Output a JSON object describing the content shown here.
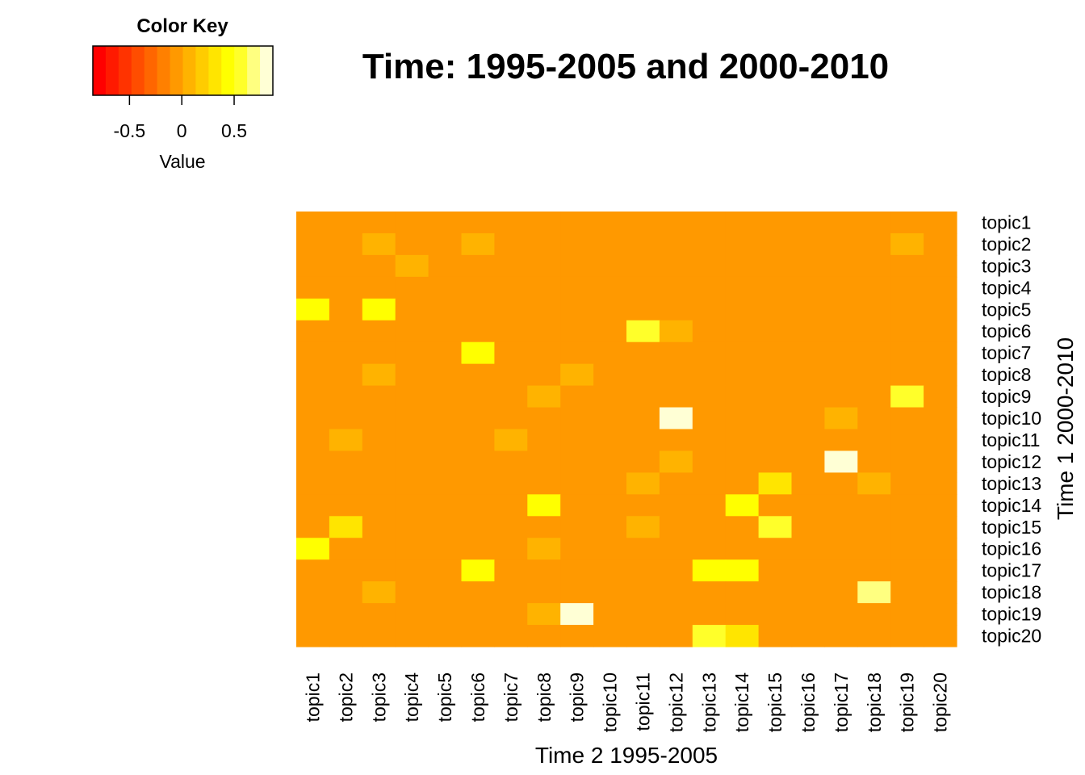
{
  "chart_data": {
    "type": "heatmap",
    "title": "Time: 1995-2005 and 2000-2010",
    "xlabel": "Time 2 1995-2005",
    "ylabel": "Time 1 2000-2010",
    "columns": [
      "topic1",
      "topic2",
      "topic3",
      "topic4",
      "topic5",
      "topic6",
      "topic7",
      "topic8",
      "topic9",
      "topic10",
      "topic11",
      "topic12",
      "topic13",
      "topic14",
      "topic15",
      "topic16",
      "topic17",
      "topic18",
      "topic19",
      "topic20"
    ],
    "rows": [
      "topic1",
      "topic2",
      "topic3",
      "topic4",
      "topic5",
      "topic6",
      "topic7",
      "topic8",
      "topic9",
      "topic10",
      "topic11",
      "topic12",
      "topic13",
      "topic14",
      "topic15",
      "topic16",
      "topic17",
      "topic18",
      "topic19",
      "topic20"
    ],
    "values": [
      [
        0,
        0,
        0,
        0,
        0,
        0,
        0,
        0,
        0,
        0,
        0,
        0,
        0,
        0,
        0,
        0,
        0,
        0,
        0,
        -0.1
      ],
      [
        0,
        0,
        0.1,
        0,
        0,
        0.1,
        0,
        0,
        0,
        0,
        0,
        0,
        0,
        0,
        0,
        0,
        0,
        0,
        0.1,
        -0.1
      ],
      [
        0,
        0,
        0,
        0.1,
        -0.1,
        0,
        0,
        0,
        0,
        0,
        0,
        -0.1,
        0,
        0,
        0,
        0,
        0,
        0,
        0,
        -0.1
      ],
      [
        -0.1,
        0,
        -0.1,
        -0.1,
        -0.1,
        -0.1,
        -0.1,
        -0.1,
        0,
        -0.1,
        0,
        -0.1,
        -0.1,
        -0.1,
        -0.1,
        0,
        0,
        -0.1,
        0,
        -0.1
      ],
      [
        0.5,
        0,
        0.5,
        0,
        0,
        0,
        0,
        -0.1,
        0,
        0,
        0,
        0,
        0,
        0,
        0,
        0,
        0,
        0,
        0,
        -0.1
      ],
      [
        0,
        0,
        0,
        0,
        0,
        0,
        0,
        0,
        0,
        0,
        0.6,
        0.1,
        0,
        0,
        0,
        -0.1,
        0,
        0,
        0,
        -0.1
      ],
      [
        0,
        0,
        0,
        0,
        0,
        0.5,
        0,
        0,
        0,
        0,
        0,
        0,
        0,
        0,
        0,
        0,
        0,
        0,
        0,
        -0.1
      ],
      [
        0,
        0,
        0.1,
        0,
        0,
        0,
        0,
        0,
        0.1,
        0,
        0,
        0,
        0,
        0,
        0,
        -0.1,
        0,
        0,
        0,
        -0.1
      ],
      [
        0,
        0,
        0,
        0,
        0,
        0,
        0,
        0.1,
        0,
        0,
        0,
        0,
        0,
        0,
        0,
        0,
        0,
        0,
        0.6,
        0
      ],
      [
        0,
        0,
        0,
        -0.1,
        0,
        0,
        0,
        0,
        -0.1,
        0,
        0,
        0.85,
        0,
        0,
        0,
        -0.1,
        0.1,
        0,
        0,
        -0.1
      ],
      [
        0,
        0.1,
        0,
        0,
        0,
        0,
        0.1,
        0,
        0,
        0,
        0,
        0,
        0,
        0,
        0,
        0,
        0,
        0,
        0,
        -0.1
      ],
      [
        0,
        0,
        0,
        -0.1,
        0,
        0,
        0,
        0,
        0,
        0,
        0,
        0.1,
        0,
        0,
        0,
        0,
        0.85,
        0,
        0,
        0
      ],
      [
        0,
        0,
        0,
        0,
        0,
        0,
        0,
        0,
        0,
        0,
        0.1,
        0,
        0,
        0,
        0.3,
        0,
        0,
        0.1,
        0,
        0
      ],
      [
        -0.1,
        0,
        0,
        0,
        0,
        0,
        -0.1,
        0.5,
        0,
        0,
        0,
        0,
        0,
        0.5,
        0,
        -0.1,
        -0.1,
        0,
        0,
        -0.1
      ],
      [
        0,
        0.3,
        0,
        0,
        -0.1,
        0,
        0,
        0,
        0,
        0,
        0.1,
        -0.1,
        0,
        0,
        0.6,
        0,
        -0.1,
        0,
        0,
        -0.1
      ],
      [
        0.4,
        0,
        0,
        0,
        0,
        -0.1,
        0,
        0.1,
        0,
        0,
        0,
        0,
        0,
        0,
        0,
        0,
        0,
        0,
        0,
        0
      ],
      [
        0,
        0,
        0,
        0,
        0,
        0.5,
        0,
        0,
        0,
        0,
        -0.1,
        0,
        0.5,
        0.5,
        0,
        -0.1,
        0,
        0,
        0,
        -0.1
      ],
      [
        -0.1,
        0,
        0.1,
        0,
        0,
        0,
        0,
        0,
        0,
        0,
        0,
        0,
        0,
        0,
        0,
        0,
        0,
        0.7,
        0,
        -0.1
      ],
      [
        0,
        0,
        0,
        0,
        0,
        0,
        0,
        0.1,
        0.85,
        0,
        0,
        -0.1,
        0,
        0,
        0,
        -0.1,
        -0.1,
        0,
        0,
        -0.1
      ],
      [
        0,
        0,
        0,
        0,
        0,
        0,
        0,
        0,
        0,
        0,
        0,
        -0.1,
        0.6,
        0.3,
        0,
        0,
        0,
        0,
        0,
        -0.1
      ]
    ],
    "color_key": {
      "title": "Color Key",
      "label": "Value",
      "ticks": [
        -0.5,
        0,
        0.5
      ],
      "tick_labels": [
        "-0.5",
        "0",
        "0.5"
      ],
      "range": [
        -0.85,
        0.87
      ],
      "colors": [
        "#FF0000",
        "#FF1A00",
        "#FF3300",
        "#FF4D00",
        "#FF6600",
        "#FF8000",
        "#FF9900",
        "#FFB300",
        "#FFCC00",
        "#FFE500",
        "#FFFF00",
        "#FFFF2A",
        "#FFFF80",
        "#FFFFD5"
      ]
    }
  }
}
